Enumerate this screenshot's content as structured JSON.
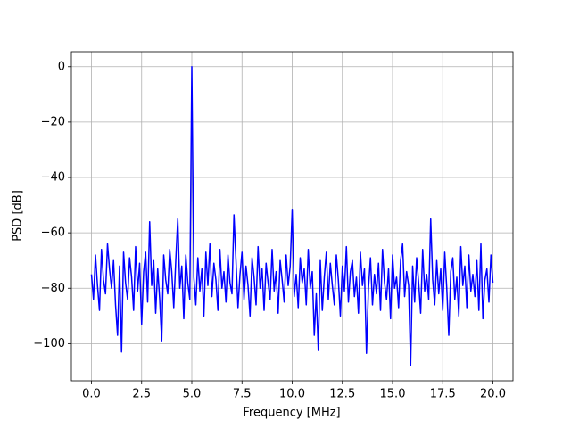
{
  "chart_data": {
    "type": "line",
    "xlabel": "Frequency [MHz]",
    "ylabel": "PSD [dB]",
    "xlim": [
      -1,
      21
    ],
    "ylim": [
      -113.4,
      5.4
    ],
    "grid": true,
    "xticks": [
      {
        "value": 0,
        "label": "0.0"
      },
      2.5,
      {
        "value": 5,
        "label": "5.0"
      },
      7.5,
      {
        "value": 10,
        "label": "10.0"
      },
      12.5,
      {
        "value": 15,
        "label": "15.0"
      },
      17.5,
      {
        "value": 20,
        "label": "20.0"
      }
    ],
    "yticks": [
      {
        "value": -100,
        "label": "−100"
      },
      {
        "value": -80,
        "label": "−80"
      },
      {
        "value": -60,
        "label": "−60"
      },
      {
        "value": -40,
        "label": "−40"
      },
      {
        "value": -20,
        "label": "−20"
      },
      0
    ],
    "series": [
      {
        "color": "#0000ff",
        "x": [
          0,
          0.1,
          0.2,
          0.3,
          0.4,
          0.5,
          0.6,
          0.7,
          0.8,
          0.9,
          1,
          1.1,
          1.2,
          1.3,
          1.4,
          1.5,
          1.6,
          1.7,
          1.8,
          1.9,
          2,
          2.1,
          2.2,
          2.3,
          2.4,
          2.5,
          2.6,
          2.7,
          2.8,
          2.9,
          3,
          3.1,
          3.2,
          3.3,
          3.4,
          3.5,
          3.6,
          3.7,
          3.8,
          3.9,
          4,
          4.1,
          4.2,
          4.3,
          4.4,
          4.5,
          4.6,
          4.7,
          4.8,
          4.9,
          5,
          5.1,
          5.2,
          5.3,
          5.4,
          5.5,
          5.6,
          5.7,
          5.8,
          5.9,
          6,
          6.1,
          6.2,
          6.3,
          6.4,
          6.5,
          6.6,
          6.7,
          6.8,
          6.9,
          7,
          7.1,
          7.2,
          7.3,
          7.4,
          7.5,
          7.6,
          7.7,
          7.8,
          7.9,
          8,
          8.1,
          8.2,
          8.3,
          8.4,
          8.5,
          8.6,
          8.7,
          8.8,
          8.9,
          9,
          9.1,
          9.2,
          9.3,
          9.4,
          9.5,
          9.6,
          9.7,
          9.8,
          9.9,
          10,
          10.1,
          10.2,
          10.3,
          10.4,
          10.5,
          10.6,
          10.7,
          10.8,
          10.9,
          11,
          11.1,
          11.2,
          11.3,
          11.4,
          11.5,
          11.6,
          11.7,
          11.8,
          11.9,
          12,
          12.1,
          12.2,
          12.3,
          12.4,
          12.5,
          12.6,
          12.7,
          12.8,
          12.9,
          13,
          13.1,
          13.2,
          13.3,
          13.4,
          13.5,
          13.6,
          13.7,
          13.8,
          13.9,
          14,
          14.1,
          14.2,
          14.3,
          14.4,
          14.5,
          14.6,
          14.7,
          14.8,
          14.9,
          15,
          15.1,
          15.2,
          15.3,
          15.4,
          15.5,
          15.6,
          15.7,
          15.8,
          15.9,
          16,
          16.1,
          16.2,
          16.3,
          16.4,
          16.5,
          16.6,
          16.7,
          16.8,
          16.9,
          17,
          17.1,
          17.2,
          17.3,
          17.4,
          17.5,
          17.6,
          17.7,
          17.8,
          17.9,
          18,
          18.1,
          18.2,
          18.3,
          18.4,
          18.5,
          18.6,
          18.7,
          18.8,
          18.9,
          19,
          19.1,
          19.2,
          19.3,
          19.4,
          19.5,
          19.6,
          19.7,
          19.8,
          19.9,
          20
        ],
        "values": [
          -75,
          -84,
          -68,
          -79,
          -88,
          -66,
          -77,
          -82,
          -64,
          -73,
          -80,
          -70,
          -86,
          -97,
          -72,
          -103,
          -67,
          -78,
          -84,
          -69,
          -76,
          -88,
          -65,
          -81,
          -71,
          -93,
          -74,
          -67,
          -85,
          -56,
          -79,
          -70,
          -89,
          -73,
          -84,
          -99,
          -68,
          -77,
          -82,
          -66,
          -74,
          -87,
          -70,
          -55,
          -80,
          -72,
          -91,
          -68,
          -78,
          -84,
          0,
          -76,
          -86,
          -69,
          -81,
          -73,
          -90,
          -67,
          -79,
          -64,
          -83,
          -71,
          -77,
          -88,
          -66,
          -80,
          -74,
          -85,
          -68,
          -78,
          -82,
          -53.5,
          -70,
          -87,
          -75,
          -67,
          -84,
          -72,
          -79,
          -90,
          -69,
          -76,
          -86,
          -65,
          -80,
          -73,
          -88,
          -71,
          -78,
          -84,
          -66,
          -81,
          -74,
          -89,
          -70,
          -77,
          -85,
          -68,
          -79,
          -72,
          -51.5,
          -83,
          -75,
          -87,
          -69,
          -78,
          -73,
          -86,
          -66,
          -80,
          -74,
          -97,
          -82,
          -102.5,
          -70,
          -88,
          -76,
          -67,
          -84,
          -71,
          -79,
          -86,
          -68,
          -77,
          -90,
          -72,
          -81,
          -65,
          -85,
          -74,
          -70,
          -83,
          -76,
          -89,
          -67,
          -79,
          -73,
          -103.5,
          -80,
          -69,
          -86,
          -75,
          -82,
          -71,
          -88,
          -66,
          -78,
          -84,
          -73,
          -91,
          -68,
          -80,
          -76,
          -87,
          -70,
          -64,
          -83,
          -74,
          -79,
          -108,
          -72,
          -85,
          -69,
          -78,
          -89,
          -66,
          -81,
          -75,
          -84,
          -55,
          -77,
          -86,
          -70,
          -82,
          -73,
          -88,
          -67,
          -80,
          -97,
          -74,
          -69,
          -84,
          -76,
          -90,
          -65,
          -79,
          -72,
          -87,
          -68,
          -81,
          -75,
          -83,
          -70,
          -88,
          -64,
          -91,
          -77,
          -73,
          -85,
          -68,
          -78
        ]
      }
    ]
  }
}
